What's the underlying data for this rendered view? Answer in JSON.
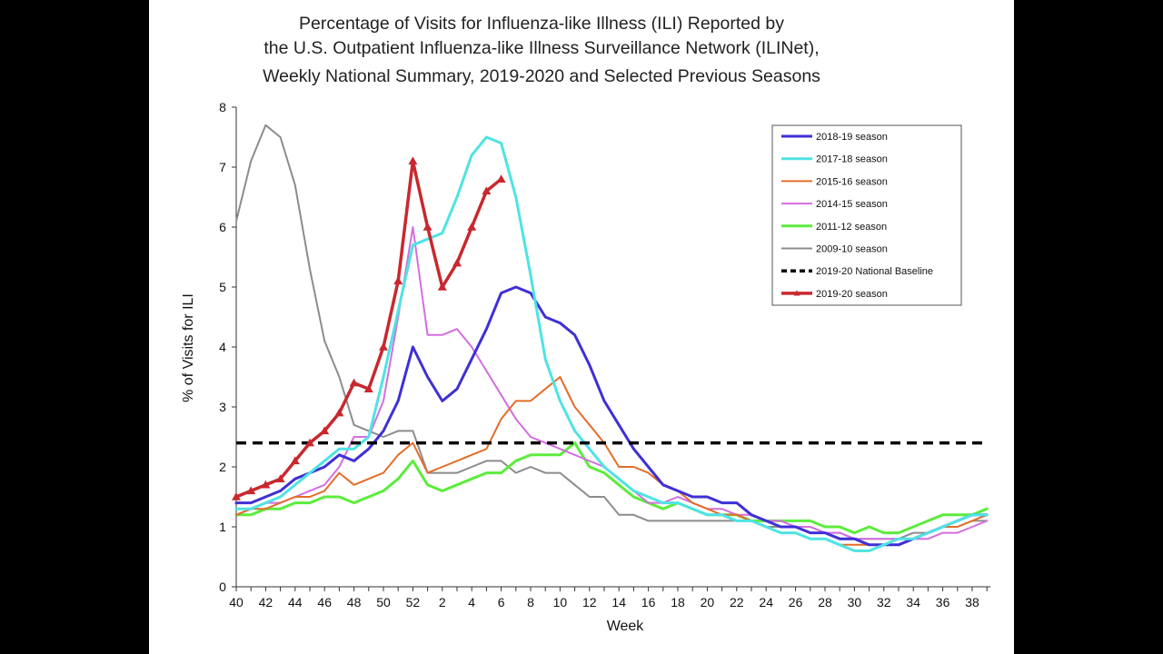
{
  "chart_data": {
    "type": "line",
    "title": [
      "Percentage of Visits for Influenza-like Illness (ILI) Reported by",
      "the U.S. Outpatient Influenza-like Illness Surveillance Network (ILINet),",
      "Weekly National Summary, 2019-2020 and Selected Previous Seasons"
    ],
    "xlabel": "Week",
    "ylabel": "% of Visits for ILI",
    "ylim": [
      0,
      8
    ],
    "yticks": [
      0,
      1,
      2,
      3,
      4,
      5,
      6,
      7,
      8
    ],
    "x_tick_labels": [
      "40",
      "42",
      "44",
      "46",
      "48",
      "50",
      "52",
      "2",
      "4",
      "6",
      "8",
      "10",
      "12",
      "14",
      "16",
      "18",
      "20",
      "22",
      "24",
      "26",
      "28",
      "30",
      "32",
      "34",
      "36",
      "38"
    ],
    "weeks": [
      40,
      41,
      42,
      43,
      44,
      45,
      46,
      47,
      48,
      49,
      50,
      51,
      52,
      1,
      2,
      3,
      4,
      5,
      6,
      7,
      8,
      9,
      10,
      11,
      12,
      13,
      14,
      15,
      16,
      17,
      18,
      19,
      20,
      21,
      22,
      23,
      24,
      25,
      26,
      27,
      28,
      29,
      30,
      31,
      32,
      33,
      34,
      35,
      36,
      37,
      38,
      39
    ],
    "grid": false,
    "legend_position": "top-right",
    "series": [
      {
        "name": "2018-19 season",
        "color": "#3f2fd6",
        "width": 3,
        "values": [
          1.4,
          1.4,
          1.5,
          1.6,
          1.8,
          1.9,
          2.0,
          2.2,
          2.1,
          2.3,
          2.6,
          3.1,
          4.0,
          3.5,
          3.1,
          3.3,
          3.8,
          4.3,
          4.9,
          5.0,
          4.9,
          4.5,
          4.4,
          4.2,
          3.7,
          3.1,
          2.7,
          2.3,
          2.0,
          1.7,
          1.6,
          1.5,
          1.5,
          1.4,
          1.4,
          1.2,
          1.1,
          1.0,
          1.0,
          0.9,
          0.9,
          0.8,
          0.8,
          0.7,
          0.7,
          0.7,
          0.8,
          0.9,
          1.0,
          1.1,
          1.2,
          1.2
        ]
      },
      {
        "name": "2017-18 season",
        "color": "#4fe3e3",
        "width": 3,
        "values": [
          1.3,
          1.3,
          1.4,
          1.5,
          1.7,
          1.9,
          2.1,
          2.3,
          2.3,
          2.5,
          3.5,
          4.6,
          5.7,
          5.8,
          5.9,
          6.5,
          7.2,
          7.5,
          7.4,
          6.5,
          5.2,
          3.8,
          3.1,
          2.6,
          2.3,
          2.0,
          1.8,
          1.6,
          1.5,
          1.4,
          1.4,
          1.3,
          1.2,
          1.2,
          1.1,
          1.1,
          1.0,
          0.9,
          0.9,
          0.8,
          0.8,
          0.7,
          0.6,
          0.6,
          0.7,
          0.8,
          0.8,
          0.9,
          1.0,
          1.1,
          1.2,
          1.2
        ]
      },
      {
        "name": "2015-16 season",
        "color": "#e36d2a",
        "width": 2,
        "values": [
          1.2,
          1.3,
          1.3,
          1.4,
          1.5,
          1.5,
          1.6,
          1.9,
          1.7,
          1.8,
          1.9,
          2.2,
          2.4,
          1.9,
          2.0,
          2.1,
          2.2,
          2.3,
          2.8,
          3.1,
          3.1,
          3.3,
          3.5,
          3.0,
          2.7,
          2.4,
          2.0,
          2.0,
          1.9,
          1.7,
          1.6,
          1.4,
          1.3,
          1.2,
          1.2,
          1.1,
          1.0,
          0.9,
          0.9,
          0.8,
          0.8,
          0.7,
          0.7,
          0.7,
          0.7,
          0.7,
          0.8,
          0.9,
          1.0,
          1.0,
          1.1,
          1.2
        ]
      },
      {
        "name": "2014-15 season",
        "color": "#d36ee0",
        "width": 2,
        "values": [
          1.2,
          1.3,
          1.4,
          1.4,
          1.5,
          1.6,
          1.7,
          2.0,
          2.5,
          2.5,
          3.1,
          4.5,
          6.0,
          4.2,
          4.2,
          4.3,
          4.0,
          3.6,
          3.2,
          2.8,
          2.5,
          2.4,
          2.3,
          2.2,
          2.1,
          2.0,
          1.8,
          1.6,
          1.4,
          1.4,
          1.5,
          1.4,
          1.3,
          1.3,
          1.2,
          1.2,
          1.1,
          1.1,
          1.0,
          1.0,
          0.9,
          0.9,
          0.8,
          0.8,
          0.8,
          0.8,
          0.8,
          0.8,
          0.9,
          0.9,
          1.0,
          1.1
        ]
      },
      {
        "name": "2011-12 season",
        "color": "#5cec3c",
        "width": 3,
        "values": [
          1.2,
          1.2,
          1.3,
          1.3,
          1.4,
          1.4,
          1.5,
          1.5,
          1.4,
          1.5,
          1.6,
          1.8,
          2.1,
          1.7,
          1.6,
          1.7,
          1.8,
          1.9,
          1.9,
          2.1,
          2.2,
          2.2,
          2.2,
          2.4,
          2.0,
          1.9,
          1.7,
          1.5,
          1.4,
          1.3,
          1.4,
          1.3,
          1.2,
          1.2,
          1.2,
          1.1,
          1.1,
          1.1,
          1.1,
          1.1,
          1.0,
          1.0,
          0.9,
          1.0,
          0.9,
          0.9,
          1.0,
          1.1,
          1.2,
          1.2,
          1.2,
          1.3
        ]
      },
      {
        "name": "2009-10 season",
        "color": "#8c8c8c",
        "width": 2,
        "values": [
          6.1,
          7.1,
          7.7,
          7.5,
          6.7,
          5.3,
          4.1,
          3.5,
          2.7,
          2.6,
          2.5,
          2.6,
          2.6,
          1.9,
          1.9,
          1.9,
          2.0,
          2.1,
          2.1,
          1.9,
          2.0,
          1.9,
          1.9,
          1.7,
          1.5,
          1.5,
          1.2,
          1.2,
          1.1,
          1.1,
          1.1,
          1.1,
          1.1,
          1.1,
          1.1,
          1.1,
          1.0,
          1.0,
          1.0,
          1.0,
          0.9,
          0.9,
          0.8,
          0.8,
          0.8,
          0.8,
          0.9,
          0.9,
          1.0,
          1.0,
          1.1,
          1.1
        ]
      },
      {
        "name": "2019-20 National Baseline",
        "color": "#000000",
        "width": 3.5,
        "dashed": true,
        "values": [
          2.4,
          2.4,
          2.4,
          2.4,
          2.4,
          2.4,
          2.4,
          2.4,
          2.4,
          2.4,
          2.4,
          2.4,
          2.4,
          2.4,
          2.4,
          2.4,
          2.4,
          2.4,
          2.4,
          2.4,
          2.4,
          2.4,
          2.4,
          2.4,
          2.4,
          2.4,
          2.4,
          2.4,
          2.4,
          2.4,
          2.4,
          2.4,
          2.4,
          2.4,
          2.4,
          2.4,
          2.4,
          2.4,
          2.4,
          2.4,
          2.4,
          2.4,
          2.4,
          2.4,
          2.4,
          2.4,
          2.4,
          2.4,
          2.4,
          2.4,
          2.4,
          2.4
        ]
      },
      {
        "name": "2019-20 season",
        "color": "#c8282e",
        "width": 3.5,
        "markers": true,
        "values": [
          1.5,
          1.6,
          1.7,
          1.8,
          2.1,
          2.4,
          2.6,
          2.9,
          3.4,
          3.3,
          4.0,
          5.1,
          7.1,
          6.0,
          5.0,
          5.4,
          6.0,
          6.6,
          6.8
        ]
      }
    ]
  }
}
